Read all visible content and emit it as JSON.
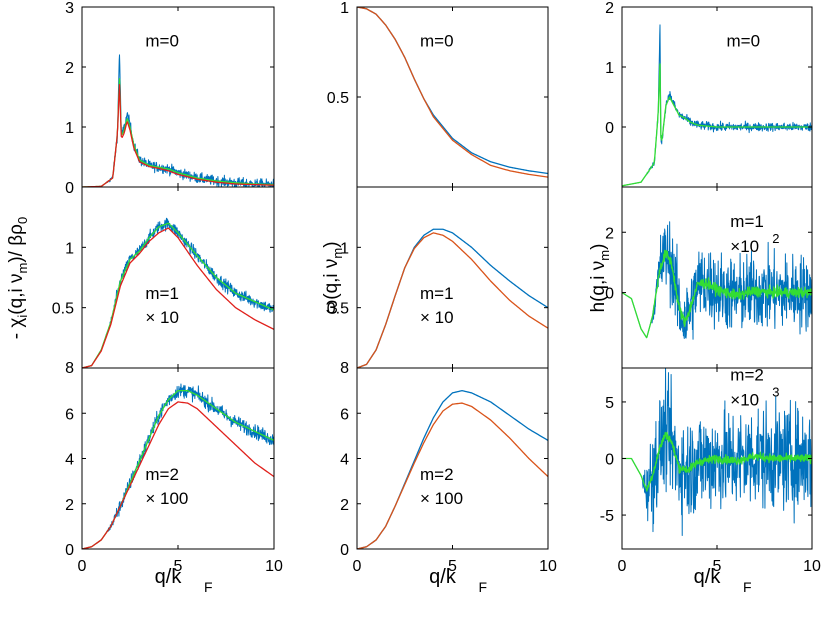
{
  "figure": {
    "xlabel_main": "q/k",
    "xlabel_sub": "F",
    "xticks": [
      "0",
      "5",
      "10"
    ],
    "columns": [
      {
        "ylabel_parts": [
          "- χ",
          "i",
          "(q,i ν",
          "m",
          ")/ βρ",
          "0"
        ]
      },
      {
        "ylabel_parts": [
          "ω(q,i ν",
          "m",
          ")"
        ]
      },
      {
        "ylabel_parts": [
          "h(q,i ν",
          "m",
          ")"
        ]
      }
    ]
  },
  "colors": {
    "blue": "#0072bd",
    "orange": "#d95319",
    "red": "#e0201b",
    "green": "#33dd33"
  },
  "chart_data": [
    {
      "type": "line",
      "col": 0,
      "row": 0,
      "xlim": [
        0,
        10
      ],
      "ylim": [
        0,
        3
      ],
      "yticks": [
        {
          "v": 0,
          "label": "0"
        },
        {
          "v": 1,
          "label": "1"
        },
        {
          "v": 2,
          "label": "2"
        },
        {
          "v": 3,
          "label": "3"
        }
      ],
      "annotation": [
        "m=0"
      ],
      "series": [
        {
          "name": "blue",
          "noise": 0.06,
          "x": [
            0,
            1,
            1.6,
            1.85,
            1.95,
            2.05,
            2.2,
            2.35,
            2.5,
            2.7,
            3,
            3.5,
            4,
            4.5,
            5,
            6,
            7,
            8,
            9,
            10
          ],
          "y": [
            0,
            0.01,
            0.15,
            0.9,
            2.3,
            0.85,
            1.0,
            1.2,
            1.05,
            0.7,
            0.45,
            0.36,
            0.33,
            0.3,
            0.24,
            0.15,
            0.1,
            0.07,
            0.05,
            0.04
          ]
        },
        {
          "name": "green",
          "noise": 0,
          "x": [
            0,
            1,
            1.6,
            1.85,
            1.95,
            2.05,
            2.2,
            2.35,
            2.5,
            2.7,
            3,
            3.5,
            4,
            4.5,
            5,
            6,
            7,
            8,
            9,
            10
          ],
          "y": [
            0,
            0.01,
            0.15,
            0.9,
            1.85,
            0.85,
            0.95,
            1.15,
            1.0,
            0.7,
            0.45,
            0.36,
            0.33,
            0.3,
            0.24,
            0.15,
            0.1,
            0.07,
            0.05,
            0.04
          ]
        },
        {
          "name": "red",
          "noise": 0,
          "x": [
            0,
            1,
            1.6,
            1.85,
            1.95,
            2.05,
            2.2,
            2.35,
            2.5,
            2.7,
            3,
            3.5,
            4,
            4.5,
            5,
            6,
            7,
            8,
            9,
            10
          ],
          "y": [
            0,
            0.01,
            0.15,
            0.9,
            1.75,
            0.8,
            0.9,
            1.1,
            0.95,
            0.65,
            0.42,
            0.34,
            0.31,
            0.27,
            0.21,
            0.13,
            0.08,
            0.05,
            0.04,
            0.03
          ]
        }
      ]
    },
    {
      "type": "line",
      "col": 0,
      "row": 1,
      "xlim": [
        0,
        10
      ],
      "ylim": [
        0,
        1.5
      ],
      "yticks": [
        {
          "v": 0.5,
          "label": "0.5"
        },
        {
          "v": 1,
          "label": "1"
        }
      ],
      "annotation": [
        "m=1",
        "× 10"
      ],
      "series": [
        {
          "name": "blue",
          "noise": 0.035,
          "x": [
            0,
            0.5,
            1,
            1.5,
            2,
            2.5,
            3,
            3.5,
            4,
            4.5,
            5,
            6,
            7,
            8,
            9,
            10
          ],
          "y": [
            0,
            0.02,
            0.15,
            0.38,
            0.72,
            0.9,
            0.97,
            1.08,
            1.17,
            1.2,
            1.12,
            0.93,
            0.75,
            0.62,
            0.55,
            0.48
          ]
        },
        {
          "name": "green",
          "noise": 0,
          "x": [
            0,
            0.5,
            1,
            1.5,
            2,
            2.5,
            3,
            3.5,
            4,
            4.5,
            5,
            6,
            7,
            8,
            9,
            10
          ],
          "y": [
            0,
            0.02,
            0.15,
            0.38,
            0.72,
            0.9,
            0.97,
            1.08,
            1.17,
            1.2,
            1.12,
            0.93,
            0.75,
            0.62,
            0.55,
            0.48
          ]
        },
        {
          "name": "red",
          "noise": 0,
          "x": [
            0,
            0.5,
            1,
            1.5,
            2,
            2.5,
            3,
            3.5,
            4,
            4.5,
            5,
            6,
            7,
            8,
            9,
            10
          ],
          "y": [
            0,
            0.02,
            0.14,
            0.36,
            0.68,
            0.87,
            0.95,
            1.05,
            1.12,
            1.16,
            1.08,
            0.85,
            0.65,
            0.5,
            0.4,
            0.32
          ]
        }
      ]
    },
    {
      "type": "line",
      "col": 0,
      "row": 2,
      "xlim": [
        0,
        10
      ],
      "ylim": [
        0,
        8
      ],
      "yticks": [
        {
          "v": 0,
          "label": "0"
        },
        {
          "v": 2,
          "label": "2"
        },
        {
          "v": 4,
          "label": "4"
        },
        {
          "v": 6,
          "label": "6"
        },
        {
          "v": 8,
          "label": "8"
        }
      ],
      "annotation": [
        "m=2",
        "× 100"
      ],
      "series": [
        {
          "name": "blue",
          "noise": 0.22,
          "x": [
            0,
            0.5,
            1,
            1.5,
            2,
            2.5,
            3,
            3.5,
            4,
            4.5,
            5,
            5.5,
            6,
            7,
            8,
            9,
            10
          ],
          "y": [
            0,
            0.1,
            0.4,
            1.0,
            1.9,
            2.9,
            3.9,
            4.9,
            5.9,
            6.6,
            7.0,
            7.0,
            6.8,
            6.2,
            5.6,
            5.2,
            4.8
          ]
        },
        {
          "name": "green",
          "noise": 0,
          "x": [
            0,
            0.5,
            1,
            1.5,
            2,
            2.5,
            3,
            3.5,
            4,
            4.5,
            5,
            5.5,
            6,
            7,
            8,
            9,
            10
          ],
          "y": [
            0,
            0.1,
            0.4,
            1.0,
            1.9,
            2.9,
            3.9,
            4.9,
            5.9,
            6.6,
            7.0,
            7.0,
            6.8,
            6.2,
            5.6,
            5.2,
            4.8
          ]
        },
        {
          "name": "red",
          "noise": 0,
          "x": [
            0,
            0.5,
            1,
            1.5,
            2,
            2.5,
            3,
            3.5,
            4,
            4.5,
            5,
            5.5,
            6,
            7,
            8,
            9,
            10
          ],
          "y": [
            0,
            0.1,
            0.4,
            1.0,
            1.9,
            2.8,
            3.7,
            4.6,
            5.5,
            6.2,
            6.5,
            6.45,
            6.2,
            5.4,
            4.6,
            3.8,
            3.2
          ]
        }
      ]
    },
    {
      "type": "line",
      "col": 1,
      "row": 0,
      "xlim": [
        0,
        10
      ],
      "ylim": [
        0,
        1
      ],
      "yticks": [
        {
          "v": 0.5,
          "label": "0.5"
        },
        {
          "v": 1,
          "label": "1"
        }
      ],
      "annotation": [
        "m=0"
      ],
      "series": [
        {
          "name": "blue",
          "noise": 0,
          "x": [
            0,
            0.5,
            1,
            1.5,
            2,
            2.5,
            3,
            3.5,
            4,
            5,
            6,
            7,
            8,
            9,
            10
          ],
          "y": [
            1,
            0.99,
            0.96,
            0.9,
            0.82,
            0.72,
            0.6,
            0.49,
            0.4,
            0.27,
            0.19,
            0.14,
            0.11,
            0.09,
            0.075
          ]
        },
        {
          "name": "orange",
          "noise": 0,
          "x": [
            0,
            0.5,
            1,
            1.5,
            2,
            2.5,
            3,
            3.5,
            4,
            5,
            6,
            7,
            8,
            9,
            10
          ],
          "y": [
            1,
            0.99,
            0.96,
            0.9,
            0.82,
            0.72,
            0.6,
            0.49,
            0.39,
            0.26,
            0.18,
            0.12,
            0.09,
            0.07,
            0.055
          ]
        }
      ]
    },
    {
      "type": "line",
      "col": 1,
      "row": 1,
      "xlim": [
        0,
        10
      ],
      "ylim": [
        0,
        1.5
      ],
      "yticks": [
        {
          "v": 0.5,
          "label": "0.5"
        },
        {
          "v": 1,
          "label": "1"
        }
      ],
      "annotation": [
        "m=1",
        "× 10"
      ],
      "series": [
        {
          "name": "blue",
          "noise": 0,
          "x": [
            0,
            0.5,
            1,
            1.5,
            2,
            2.5,
            3,
            3.5,
            4,
            4.5,
            5,
            6,
            7,
            8,
            9,
            10
          ],
          "y": [
            0,
            0.03,
            0.15,
            0.36,
            0.6,
            0.83,
            1.0,
            1.1,
            1.15,
            1.15,
            1.12,
            1.0,
            0.85,
            0.72,
            0.6,
            0.5
          ]
        },
        {
          "name": "orange",
          "noise": 0,
          "x": [
            0,
            0.5,
            1,
            1.5,
            2,
            2.5,
            3,
            3.5,
            4,
            4.5,
            5,
            6,
            7,
            8,
            9,
            10
          ],
          "y": [
            0,
            0.03,
            0.15,
            0.36,
            0.6,
            0.83,
            0.99,
            1.08,
            1.12,
            1.1,
            1.05,
            0.9,
            0.72,
            0.56,
            0.43,
            0.33
          ]
        }
      ]
    },
    {
      "type": "line",
      "col": 1,
      "row": 2,
      "xlim": [
        0,
        10
      ],
      "ylim": [
        0,
        8
      ],
      "yticks": [
        {
          "v": 0,
          "label": "0"
        },
        {
          "v": 2,
          "label": "2"
        },
        {
          "v": 4,
          "label": "4"
        },
        {
          "v": 6,
          "label": "6"
        },
        {
          "v": 8,
          "label": "8"
        }
      ],
      "annotation": [
        "m=2",
        "× 100"
      ],
      "series": [
        {
          "name": "blue",
          "noise": 0,
          "x": [
            0,
            0.5,
            1,
            1.5,
            2,
            2.5,
            3,
            3.5,
            4,
            4.5,
            5,
            5.5,
            6,
            7,
            8,
            9,
            10
          ],
          "y": [
            0,
            0.1,
            0.4,
            1.0,
            1.9,
            2.9,
            3.9,
            4.9,
            5.8,
            6.5,
            6.9,
            7.0,
            6.9,
            6.5,
            5.9,
            5.3,
            4.8
          ]
        },
        {
          "name": "orange",
          "noise": 0,
          "x": [
            0,
            0.5,
            1,
            1.5,
            2,
            2.5,
            3,
            3.5,
            4,
            4.5,
            5,
            5.5,
            6,
            7,
            8,
            9,
            10
          ],
          "y": [
            0,
            0.1,
            0.4,
            1.0,
            1.9,
            2.85,
            3.8,
            4.7,
            5.5,
            6.1,
            6.4,
            6.45,
            6.3,
            5.7,
            4.9,
            4.0,
            3.2
          ]
        }
      ]
    },
    {
      "type": "line",
      "col": 2,
      "row": 0,
      "xlim": [
        0,
        10
      ],
      "ylim": [
        -1,
        2
      ],
      "yticks": [
        {
          "v": 0,
          "label": "0"
        },
        {
          "v": 1,
          "label": "1"
        },
        {
          "v": 2,
          "label": "2"
        }
      ],
      "annotation": [
        "m=0"
      ],
      "series": [
        {
          "name": "blue",
          "noise": 0.05,
          "x": [
            0,
            1,
            1.7,
            1.9,
            2.0,
            2.05,
            2.15,
            2.3,
            2.5,
            2.7,
            3,
            3.3,
            3.6,
            4,
            5,
            6,
            7,
            10
          ],
          "y": [
            -0.98,
            -0.92,
            -0.6,
            0.2,
            1.7,
            -0.3,
            -0.1,
            0.35,
            0.55,
            0.4,
            0.2,
            0.15,
            0.08,
            0.03,
            0.0,
            0.0,
            0.0,
            0.0
          ]
        },
        {
          "name": "green",
          "noise": 0,
          "x": [
            0,
            1,
            1.7,
            1.9,
            2.0,
            2.05,
            2.15,
            2.3,
            2.5,
            2.7,
            3,
            3.3,
            3.6,
            4,
            5,
            6,
            7,
            10
          ],
          "y": [
            -0.98,
            -0.92,
            -0.6,
            0.2,
            1.05,
            -0.3,
            -0.1,
            0.35,
            0.5,
            0.38,
            0.2,
            0.15,
            0.08,
            0.03,
            0.0,
            0.0,
            0.0,
            0.0
          ]
        }
      ]
    },
    {
      "type": "line",
      "col": 2,
      "row": 1,
      "xlim": [
        0,
        10
      ],
      "ylim": [
        -2.5,
        3.5
      ],
      "yticks": [
        {
          "v": 0,
          "label": "0"
        },
        {
          "v": 2,
          "label": "2"
        }
      ],
      "annotation": [
        "m=1",
        "×10",
        "2"
      ],
      "series": [
        {
          "name": "blue",
          "noise": 0.9,
          "noiseStart": 1.5,
          "x": [
            0,
            0.5,
            1,
            1.3,
            1.6,
            2,
            2.3,
            2.6,
            3,
            3.3,
            3.6,
            4,
            4.5,
            5,
            6,
            7,
            8,
            9,
            10
          ],
          "y": [
            0,
            -0.2,
            -1.2,
            -1.5,
            -0.8,
            0.8,
            1.3,
            1.0,
            -0.5,
            -1.0,
            -0.5,
            0.3,
            0.3,
            0.1,
            -0.1,
            0.05,
            0.0,
            0.0,
            0.0
          ]
        },
        {
          "name": "green",
          "noise": 0.12,
          "noiseStart": 1.5,
          "x": [
            0,
            0.5,
            1,
            1.3,
            1.6,
            2,
            2.3,
            2.6,
            3,
            3.3,
            3.6,
            4,
            4.5,
            5,
            6,
            7,
            8,
            9,
            10
          ],
          "y": [
            0,
            -0.2,
            -1.2,
            -1.5,
            -0.8,
            0.8,
            1.3,
            1.0,
            -0.5,
            -1.0,
            -0.5,
            0.3,
            0.3,
            0.1,
            -0.1,
            0.05,
            0.0,
            0.0,
            0.0
          ]
        }
      ]
    },
    {
      "type": "line",
      "col": 2,
      "row": 2,
      "xlim": [
        0,
        10
      ],
      "ylim": [
        -8,
        8
      ],
      "yticks": [
        {
          "v": -5,
          "label": "-5"
        },
        {
          "v": 0,
          "label": "0"
        },
        {
          "v": 5,
          "label": "5"
        }
      ],
      "annotation": [
        "m=2",
        "×10",
        "3"
      ],
      "series": [
        {
          "name": "blue",
          "noise": 3.2,
          "noiseStart": 1.0,
          "x": [
            0,
            0.5,
            1,
            1.3,
            1.6,
            2,
            2.3,
            2.6,
            3,
            3.5,
            4,
            5,
            6,
            7,
            8,
            10
          ],
          "y": [
            0,
            0,
            -1.5,
            -2.8,
            -1.5,
            1.0,
            2.2,
            1.5,
            -0.8,
            -1.0,
            -0.3,
            0.0,
            -0.2,
            0.2,
            0.0,
            0.0
          ]
        },
        {
          "name": "green",
          "noise": 0.25,
          "noiseStart": 1.0,
          "x": [
            0,
            0.5,
            1,
            1.3,
            1.6,
            2,
            2.3,
            2.6,
            3,
            3.5,
            4,
            5,
            6,
            7,
            8,
            10
          ],
          "y": [
            0,
            0,
            -1.5,
            -2.8,
            -1.5,
            1.0,
            2.2,
            1.5,
            -0.8,
            -1.0,
            -0.3,
            0.0,
            -0.2,
            0.2,
            0.0,
            0.0
          ]
        }
      ]
    }
  ]
}
